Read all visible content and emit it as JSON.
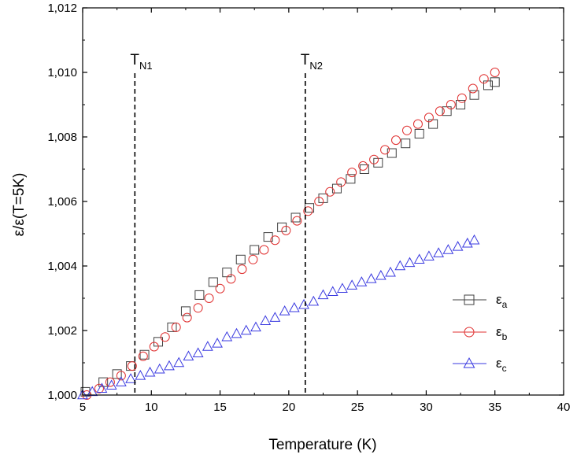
{
  "chart_data": {
    "type": "scatter",
    "xlabel": "Temperature (K)",
    "ylabel": "ε/ε(T=5K)",
    "xlim": [
      5,
      40
    ],
    "ylim": [
      1.0,
      1.012
    ],
    "x_ticks": [
      "5",
      "10",
      "15",
      "20",
      "25",
      "30",
      "35",
      "40"
    ],
    "y_ticks": [
      "1,000",
      "1,002",
      "1,004",
      "1,006",
      "1,008",
      "1,010",
      "1,012"
    ],
    "x_tick_values": [
      5,
      10,
      15,
      20,
      25,
      30,
      35,
      40
    ],
    "y_tick_values": [
      1.0,
      1.002,
      1.004,
      1.006,
      1.008,
      1.01,
      1.012
    ],
    "grid": false,
    "legend_position": "right",
    "annotations": [
      {
        "text": "T",
        "sub": "N1",
        "x": 8.8
      },
      {
        "text": "T",
        "sub": "N2",
        "x": 21.2
      }
    ],
    "series": [
      {
        "name": "ε",
        "sub": "a",
        "marker": "square",
        "color": "#404040",
        "x": [
          5.2,
          6.5,
          7.5,
          8.5,
          9.5,
          10.5,
          11.5,
          12.5,
          13.5,
          14.5,
          15.5,
          16.5,
          17.5,
          18.5,
          19.5,
          20.5,
          21.5,
          22.5,
          23.5,
          24.5,
          25.5,
          26.5,
          27.5,
          28.5,
          29.5,
          30.5,
          31.5,
          32.5,
          33.5,
          34.5,
          35.0
        ],
        "y": [
          1.0001,
          1.0004,
          1.00065,
          1.0009,
          1.00125,
          1.00165,
          1.0021,
          1.0026,
          1.0031,
          1.0035,
          1.0038,
          1.0042,
          1.0045,
          1.0049,
          1.0052,
          1.0055,
          1.0058,
          1.0061,
          1.0064,
          1.0067,
          1.007,
          1.0072,
          1.0075,
          1.0078,
          1.0081,
          1.0084,
          1.0088,
          1.009,
          1.0093,
          1.0096,
          1.0097
        ]
      },
      {
        "name": "ε",
        "sub": "b",
        "marker": "circle",
        "color": "#e03030",
        "x": [
          5.3,
          6.2,
          7.0,
          7.8,
          8.6,
          9.4,
          10.2,
          11.0,
          11.8,
          12.6,
          13.4,
          14.2,
          15.0,
          15.8,
          16.6,
          17.4,
          18.2,
          19.0,
          19.8,
          20.6,
          21.4,
          22.2,
          23.0,
          23.8,
          24.6,
          25.4,
          26.2,
          27.0,
          27.8,
          28.6,
          29.4,
          30.2,
          31.0,
          31.8,
          32.6,
          33.4,
          34.2,
          35.0
        ],
        "y": [
          1.0,
          1.0002,
          1.0004,
          1.0006,
          1.0009,
          1.0012,
          1.0015,
          1.0018,
          1.0021,
          1.0024,
          1.0027,
          1.003,
          1.0033,
          1.0036,
          1.0039,
          1.0042,
          1.0045,
          1.0048,
          1.0051,
          1.0054,
          1.0057,
          1.006,
          1.0063,
          1.0066,
          1.0069,
          1.0071,
          1.0073,
          1.0076,
          1.0079,
          1.0082,
          1.0084,
          1.0086,
          1.0088,
          1.009,
          1.0092,
          1.0095,
          1.0098,
          1.01
        ]
      },
      {
        "name": "ε",
        "sub": "c",
        "marker": "triangle",
        "color": "#3a3ae0",
        "x": [
          5.0,
          5.7,
          6.4,
          7.1,
          7.8,
          8.5,
          9.2,
          9.9,
          10.6,
          11.3,
          12.0,
          12.7,
          13.4,
          14.1,
          14.8,
          15.5,
          16.2,
          16.9,
          17.6,
          18.3,
          19.0,
          19.7,
          20.4,
          21.1,
          21.8,
          22.5,
          23.2,
          23.9,
          24.6,
          25.3,
          26.0,
          26.7,
          27.4,
          28.1,
          28.8,
          29.5,
          30.2,
          30.9,
          31.6,
          32.3,
          33.0,
          33.5
        ],
        "y": [
          1.0,
          1.0001,
          1.0002,
          1.0003,
          1.0004,
          1.0005,
          1.0006,
          1.0007,
          1.0008,
          1.0009,
          1.001,
          1.0012,
          1.0013,
          1.0015,
          1.0016,
          1.0018,
          1.0019,
          1.002,
          1.0021,
          1.0023,
          1.0024,
          1.0026,
          1.0027,
          1.0028,
          1.0029,
          1.0031,
          1.0032,
          1.0033,
          1.0034,
          1.0035,
          1.0036,
          1.0037,
          1.0038,
          1.004,
          1.0041,
          1.0042,
          1.0043,
          1.0044,
          1.0045,
          1.0046,
          1.0047,
          1.0048
        ]
      }
    ]
  }
}
